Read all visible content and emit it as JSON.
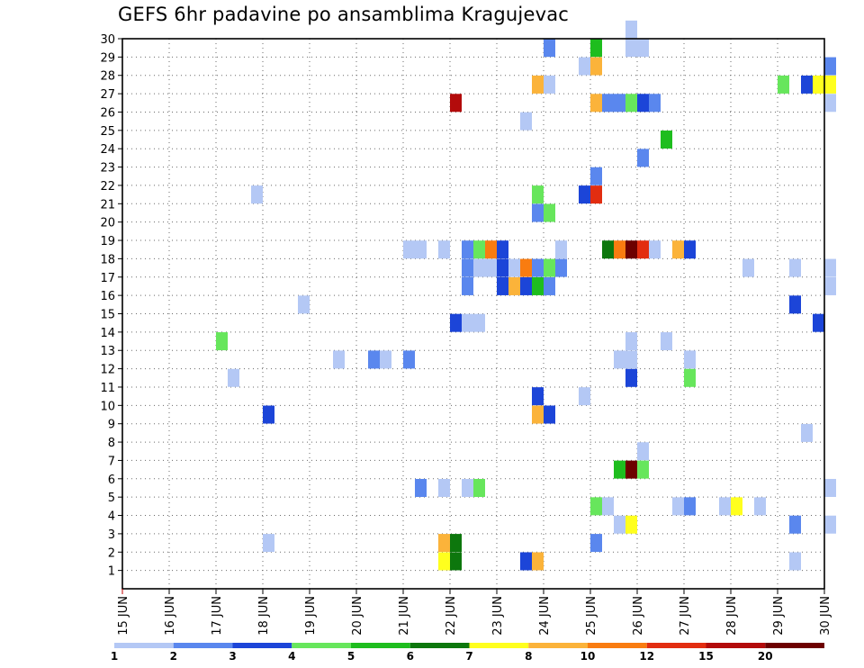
{
  "chart_data": {
    "type": "heatmap",
    "title": "GEFS 6hr padavine po ansamblima Kragujevac",
    "xlabel": "",
    "ylabel": "",
    "x_ticks": [
      "15 JUN",
      "16 JUN",
      "17 JUN",
      "18 JUN",
      "19 JUN",
      "20 JUN",
      "21 JUN",
      "22 JUN",
      "23 JUN",
      "24 JUN",
      "25 JUN",
      "26 JUN",
      "27 JUN",
      "28 JUN",
      "29 JUN",
      "30 JUN"
    ],
    "xlim": [
      0,
      15
    ],
    "ylim": [
      0,
      30
    ],
    "y_ticks": [
      1,
      2,
      3,
      4,
      5,
      6,
      7,
      8,
      9,
      10,
      11,
      12,
      13,
      14,
      15,
      16,
      17,
      18,
      19,
      20,
      21,
      22,
      23,
      24,
      25,
      26,
      27,
      28,
      29,
      30
    ],
    "grid": true,
    "time_step_hours": 6,
    "legend": {
      "placement": "bottom",
      "labels": [
        "1",
        "2",
        "3",
        "4",
        "5",
        "6",
        "7",
        "8",
        "10",
        "12",
        "15",
        "20"
      ],
      "colors": [
        "#b4c8f5",
        "#5a87ee",
        "#1c45d8",
        "#67e65c",
        "#1ebd1e",
        "#0d770d",
        "#ffff1e",
        "#fbb33a",
        "#f97c10",
        "#e22d10",
        "#b30b0b",
        "#6d0000"
      ]
    },
    "member_steps": [
      {
        "member": 30,
        "steps": [
          [
            43,
            0
          ]
        ]
      },
      {
        "member": 29,
        "steps": [
          [
            36,
            1
          ],
          [
            40,
            4
          ],
          [
            43,
            0
          ],
          [
            44,
            0
          ]
        ]
      },
      {
        "member": 28,
        "steps": [
          [
            39,
            0
          ],
          [
            40,
            7
          ],
          [
            60,
            1
          ]
        ]
      },
      {
        "member": 27,
        "steps": [
          [
            35,
            7
          ],
          [
            36,
            0
          ],
          [
            56,
            3
          ],
          [
            58,
            2
          ],
          [
            59,
            6
          ],
          [
            60,
            6
          ]
        ]
      },
      {
        "member": 26,
        "steps": [
          [
            28,
            10
          ],
          [
            40,
            7
          ],
          [
            41,
            1
          ],
          [
            42,
            1
          ],
          [
            43,
            3
          ],
          [
            44,
            2
          ],
          [
            45,
            1
          ],
          [
            60,
            0
          ]
        ]
      },
      {
        "member": 25,
        "steps": [
          [
            34,
            0
          ]
        ]
      },
      {
        "member": 24,
        "steps": [
          [
            46,
            4
          ]
        ]
      },
      {
        "member": 23,
        "steps": [
          [
            44,
            1
          ]
        ]
      },
      {
        "member": 22,
        "steps": [
          [
            40,
            1
          ]
        ]
      },
      {
        "member": 21,
        "steps": [
          [
            11,
            0
          ],
          [
            35,
            3
          ],
          [
            39,
            2
          ],
          [
            40,
            9
          ]
        ]
      },
      {
        "member": 20,
        "steps": [
          [
            35,
            1
          ],
          [
            36,
            3
          ]
        ]
      },
      {
        "member": 18,
        "steps": [
          [
            24,
            0
          ],
          [
            25,
            0
          ],
          [
            27,
            0
          ],
          [
            29,
            1
          ],
          [
            30,
            3
          ],
          [
            31,
            8
          ],
          [
            32,
            2
          ],
          [
            37,
            0
          ],
          [
            41,
            5
          ],
          [
            42,
            8
          ],
          [
            43,
            11
          ],
          [
            44,
            9
          ],
          [
            45,
            0
          ],
          [
            47,
            7
          ],
          [
            48,
            2
          ]
        ]
      },
      {
        "member": 17,
        "steps": [
          [
            29,
            1
          ],
          [
            30,
            0
          ],
          [
            31,
            0
          ],
          [
            32,
            2
          ],
          [
            33,
            0
          ],
          [
            34,
            8
          ],
          [
            35,
            1
          ],
          [
            36,
            3
          ],
          [
            37,
            1
          ],
          [
            53,
            0
          ],
          [
            57,
            0
          ],
          [
            60,
            0
          ]
        ]
      },
      {
        "member": 16,
        "steps": [
          [
            29,
            1
          ],
          [
            32,
            2
          ],
          [
            33,
            7
          ],
          [
            34,
            2
          ],
          [
            35,
            4
          ],
          [
            36,
            1
          ],
          [
            60,
            0
          ]
        ]
      },
      {
        "member": 15,
        "steps": [
          [
            15,
            0
          ],
          [
            57,
            2
          ]
        ]
      },
      {
        "member": 14,
        "steps": [
          [
            28,
            2
          ],
          [
            29,
            0
          ],
          [
            30,
            0
          ],
          [
            59,
            2
          ]
        ]
      },
      {
        "member": 13,
        "steps": [
          [
            8,
            3
          ],
          [
            43,
            0
          ],
          [
            46,
            0
          ]
        ]
      },
      {
        "member": 12,
        "steps": [
          [
            18,
            0
          ],
          [
            21,
            1
          ],
          [
            22,
            0
          ],
          [
            24,
            1
          ],
          [
            42,
            0
          ],
          [
            43,
            0
          ],
          [
            48,
            0
          ]
        ]
      },
      {
        "member": 11,
        "steps": [
          [
            9,
            0
          ],
          [
            43,
            2
          ],
          [
            48,
            3
          ]
        ]
      },
      {
        "member": 10,
        "steps": [
          [
            35,
            2
          ],
          [
            39,
            0
          ]
        ]
      },
      {
        "member": 9,
        "steps": [
          [
            12,
            2
          ],
          [
            35,
            7
          ],
          [
            36,
            2
          ]
        ]
      },
      {
        "member": 8,
        "steps": [
          [
            58,
            0
          ]
        ]
      },
      {
        "member": 7,
        "steps": [
          [
            44,
            0
          ]
        ]
      },
      {
        "member": 6,
        "steps": [
          [
            42,
            4
          ],
          [
            43,
            11
          ],
          [
            44,
            3
          ]
        ]
      },
      {
        "member": 5,
        "steps": [
          [
            25,
            1
          ],
          [
            27,
            0
          ],
          [
            29,
            0
          ],
          [
            30,
            3
          ],
          [
            60,
            0
          ]
        ]
      },
      {
        "member": 4,
        "steps": [
          [
            40,
            3
          ],
          [
            41,
            0
          ],
          [
            47,
            0
          ],
          [
            48,
            1
          ],
          [
            51,
            0
          ],
          [
            52,
            6
          ],
          [
            54,
            0
          ]
        ]
      },
      {
        "member": 3,
        "steps": [
          [
            42,
            0
          ],
          [
            43,
            6
          ],
          [
            57,
            1
          ],
          [
            60,
            0
          ]
        ]
      },
      {
        "member": 2,
        "steps": [
          [
            12,
            0
          ],
          [
            27,
            7
          ],
          [
            28,
            5
          ],
          [
            40,
            1
          ]
        ]
      },
      {
        "member": 1,
        "steps": [
          [
            27,
            6
          ],
          [
            28,
            5
          ],
          [
            34,
            2
          ],
          [
            35,
            7
          ],
          [
            57,
            0
          ]
        ]
      }
    ]
  }
}
